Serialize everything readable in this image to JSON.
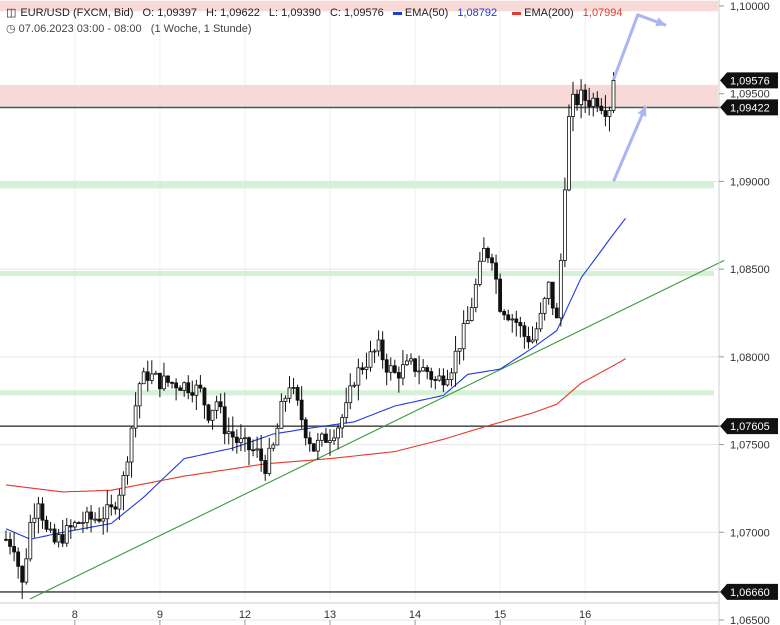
{
  "header": {
    "symbol": "EUR/USD (FXCM, Bid)",
    "open": "O: 1,09397",
    "high": "H: 1,09622",
    "low": "L: 1,09390",
    "close": "C: 1,09576",
    "ema50_label": "EMA(50)",
    "ema50_value": "1,08792",
    "ema200_label": "EMA(200)",
    "ema200_value": "1,07994",
    "range": "07.06.2023 03:00 - 08:00",
    "interval": "(1 Woche, 1 Stunde)",
    "ema50_color": "#1f3cdc",
    "ema200_color": "#e5392b"
  },
  "chart_data": {
    "type": "candlestick",
    "ylim": [
      1.065,
      1.1
    ],
    "y_ticks": [
      "1,10000",
      "1,09500",
      "1,09000",
      "1,08500",
      "1,08000",
      "1,07500",
      "1,07000",
      "1,06500"
    ],
    "y_tick_values": [
      1.1,
      1.095,
      1.09,
      1.085,
      1.08,
      1.075,
      1.07,
      1.065
    ],
    "x_ticks": [
      "8",
      "9",
      "12",
      "13",
      "14",
      "15",
      "16"
    ],
    "x_tick_index": [
      17,
      38,
      59,
      80,
      101,
      122,
      143
    ],
    "n_bars": 150,
    "price_labels": [
      {
        "text": "1,09576",
        "value": 1.09576
      },
      {
        "text": "1,09422",
        "value": 1.09422
      },
      {
        "text": "1,07605",
        "value": 1.07605
      },
      {
        "text": "1,06660",
        "value": 1.0666
      }
    ],
    "resistance_zones": [
      [
        1.0997,
        1.1003
      ],
      [
        1.0943,
        1.0955
      ]
    ],
    "support_zones": [
      [
        1.0896,
        1.09
      ],
      [
        1.0846,
        1.0849
      ],
      [
        1.0778,
        1.0781
      ]
    ],
    "horizontal_lines": [
      1.09422,
      1.07605,
      1.0666
    ],
    "trendline": {
      "from": [
        0,
        1.0662
      ],
      "to": [
        165,
        1.0855
      ]
    },
    "arrows": [
      {
        "from": [
          150,
          1.0958
        ],
        "to": [
          156,
          1.0995
        ],
        "then": [
          163,
          1.0989
        ]
      },
      {
        "from": [
          150,
          1.09
        ],
        "to": [
          158,
          1.0943
        ]
      }
    ],
    "ema50_anchors": [
      [
        0,
        1.0702
      ],
      [
        6,
        1.0696
      ],
      [
        14,
        1.07
      ],
      [
        26,
        1.0705
      ],
      [
        34,
        1.072
      ],
      [
        44,
        1.0742
      ],
      [
        56,
        1.0748
      ],
      [
        66,
        1.0756
      ],
      [
        74,
        1.0759
      ],
      [
        86,
        1.0763
      ],
      [
        96,
        1.0772
      ],
      [
        108,
        1.0778
      ],
      [
        114,
        1.079
      ],
      [
        122,
        1.0793
      ],
      [
        130,
        1.0805
      ],
      [
        136,
        1.0815
      ],
      [
        142,
        1.0845
      ],
      [
        150,
        1.087
      ],
      [
        153,
        1.0879
      ]
    ],
    "ema200_anchors": [
      [
        0,
        1.0727
      ],
      [
        14,
        1.0723
      ],
      [
        26,
        1.0724
      ],
      [
        44,
        1.0732
      ],
      [
        64,
        1.0739
      ],
      [
        80,
        1.0742
      ],
      [
        96,
        1.0746
      ],
      [
        108,
        1.0753
      ],
      [
        118,
        1.076
      ],
      [
        130,
        1.0768
      ],
      [
        136,
        1.0773
      ],
      [
        142,
        1.0785
      ],
      [
        150,
        1.0795
      ],
      [
        153,
        1.0799
      ]
    ],
    "close_anchors": [
      [
        0,
        1.0696
      ],
      [
        2,
        1.0693
      ],
      [
        4,
        1.067
      ],
      [
        6,
        1.0705
      ],
      [
        8,
        1.072
      ],
      [
        10,
        1.07
      ],
      [
        12,
        1.0694
      ],
      [
        14,
        1.0698
      ],
      [
        16,
        1.0702
      ],
      [
        18,
        1.0706
      ],
      [
        22,
        1.0708
      ],
      [
        26,
        1.0712
      ],
      [
        29,
        1.073
      ],
      [
        31,
        1.076
      ],
      [
        33,
        1.0785
      ],
      [
        35,
        1.079
      ],
      [
        38,
        1.0786
      ],
      [
        42,
        1.0785
      ],
      [
        46,
        1.0783
      ],
      [
        48,
        1.078
      ],
      [
        50,
        1.0768
      ],
      [
        52,
        1.0775
      ],
      [
        54,
        1.076
      ],
      [
        57,
        1.0752
      ],
      [
        59,
        1.0749
      ],
      [
        62,
        1.0745
      ],
      [
        64,
        1.0738
      ],
      [
        66,
        1.0748
      ],
      [
        68,
        1.077
      ],
      [
        70,
        1.0785
      ],
      [
        72,
        1.0772
      ],
      [
        74,
        1.0758
      ],
      [
        76,
        1.0748
      ],
      [
        78,
        1.0752
      ],
      [
        80,
        1.0756
      ],
      [
        82,
        1.0761
      ],
      [
        84,
        1.077
      ],
      [
        86,
        1.0788
      ],
      [
        88,
        1.0795
      ],
      [
        90,
        1.08
      ],
      [
        92,
        1.0805
      ],
      [
        94,
        1.0795
      ],
      [
        96,
        1.079
      ],
      [
        98,
        1.0793
      ],
      [
        100,
        1.0795
      ],
      [
        104,
        1.0792
      ],
      [
        106,
        1.0786
      ],
      [
        108,
        1.0789
      ],
      [
        110,
        1.0795
      ],
      [
        112,
        1.0808
      ],
      [
        114,
        1.082
      ],
      [
        116,
        1.084
      ],
      [
        118,
        1.086
      ],
      [
        120,
        1.0858
      ],
      [
        122,
        1.083
      ],
      [
        124,
        1.0825
      ],
      [
        126,
        1.082
      ],
      [
        128,
        1.0812
      ],
      [
        130,
        1.081
      ],
      [
        132,
        1.0822
      ],
      [
        134,
        1.084
      ],
      [
        136,
        1.082
      ],
      [
        137,
        1.0855
      ],
      [
        138,
        1.09
      ],
      [
        139,
        1.0935
      ],
      [
        140,
        1.0945
      ],
      [
        142,
        1.0948
      ],
      [
        144,
        1.0946
      ],
      [
        146,
        1.0947
      ],
      [
        148,
        1.0942
      ],
      [
        149,
        1.0943
      ],
      [
        150,
        1.09576
      ]
    ],
    "low_touch": [
      4,
      1.0662
    ]
  }
}
